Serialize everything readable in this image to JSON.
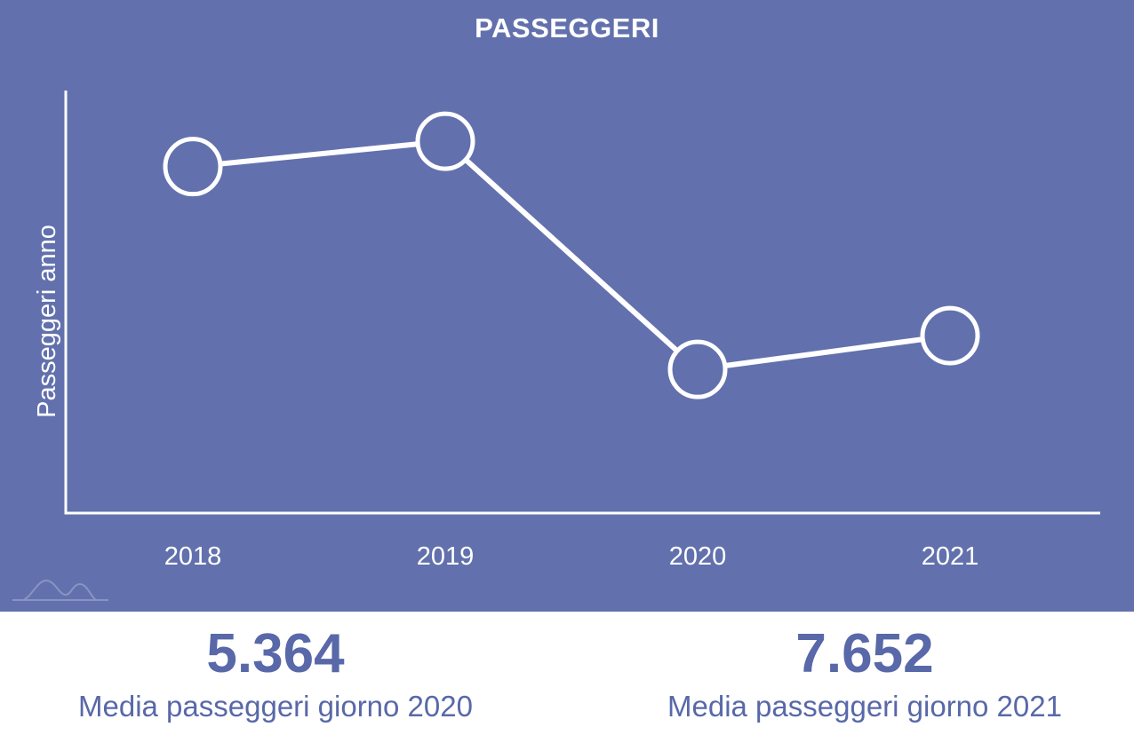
{
  "colors": {
    "panel_bg": "#6271ad",
    "line": "#ffffff",
    "stat_text": "#5868a8"
  },
  "chart_data": {
    "type": "line",
    "title": "PASSEGGERI",
    "ylabel": "Passeggeri anno",
    "xlabel": "",
    "categories": [
      "2018",
      "2019",
      "2020",
      "2021"
    ],
    "values": [
      0.82,
      0.88,
      0.34,
      0.42
    ],
    "ylim": [
      0,
      1
    ],
    "y_ticks_shown": false,
    "grid": false,
    "legend": "none"
  },
  "stats": [
    {
      "value": "5.364",
      "label": "Media passeggeri giorno 2020"
    },
    {
      "value": "7.652",
      "label": "Media passeggeri giorno 2021"
    }
  ],
  "logo_icon": "mountains-logo-icon"
}
